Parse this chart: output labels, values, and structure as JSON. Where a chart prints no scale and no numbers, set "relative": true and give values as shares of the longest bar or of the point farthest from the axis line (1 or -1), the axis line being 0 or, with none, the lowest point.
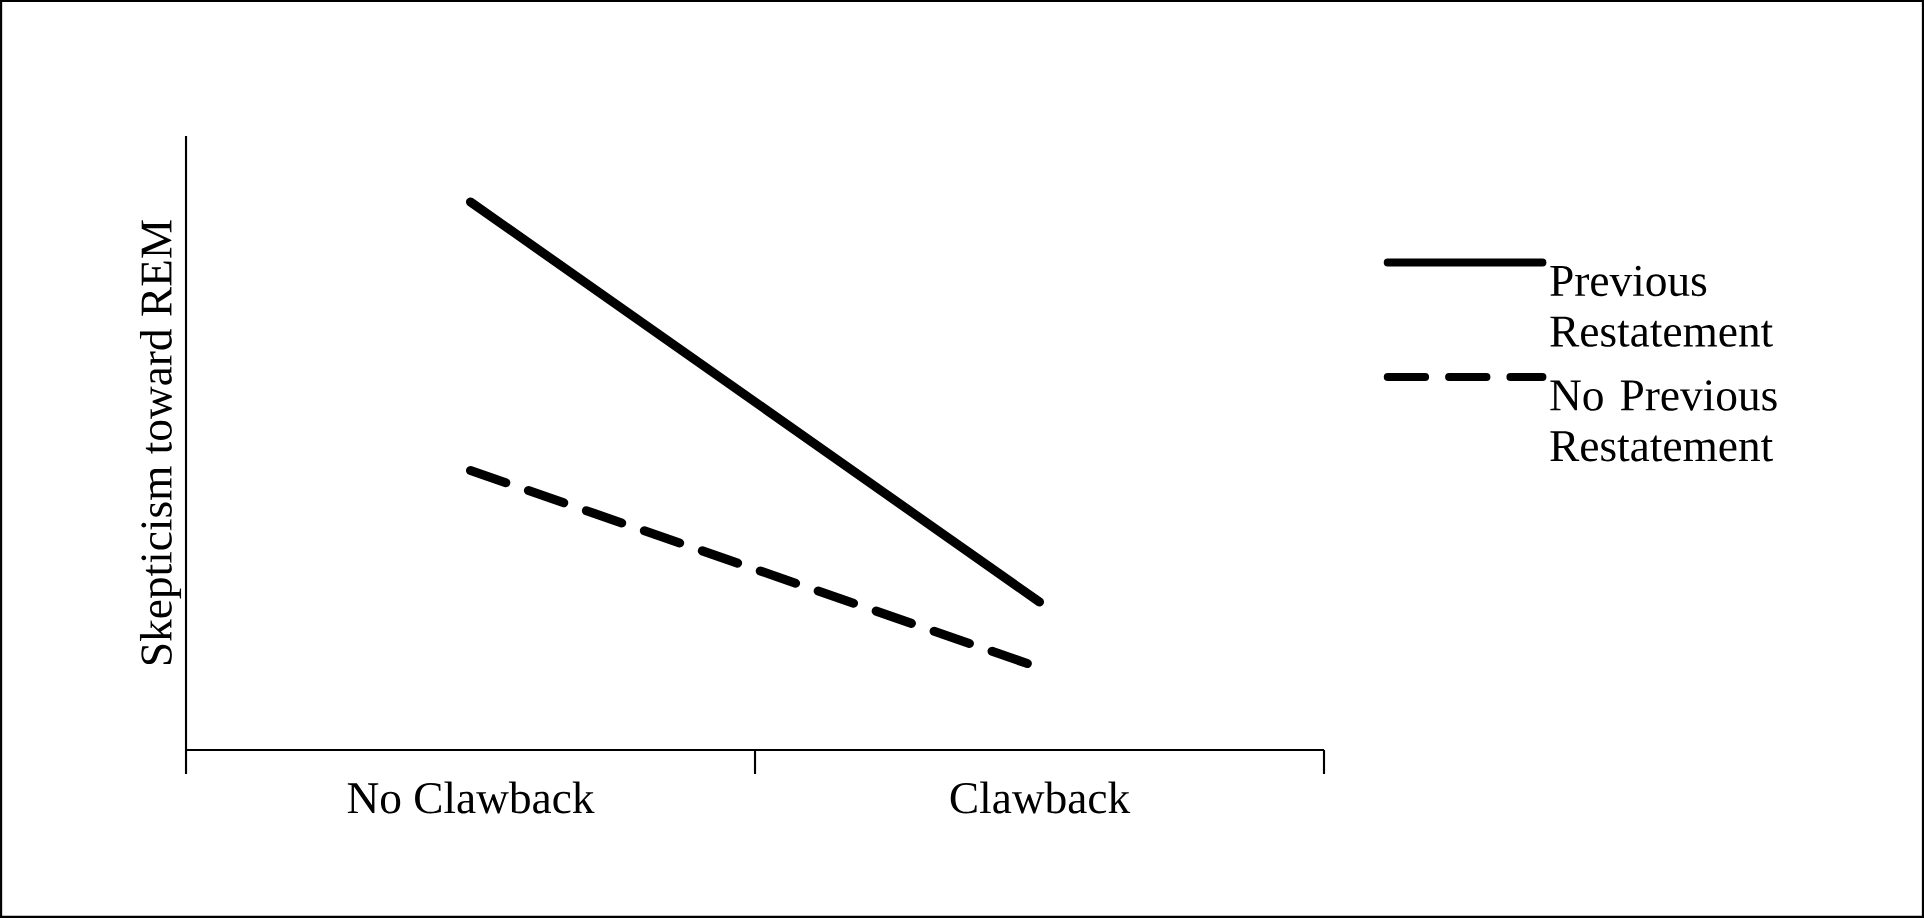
{
  "chart_data": {
    "type": "line",
    "relative": true,
    "ylabel": "Skepticism toward REM",
    "categories": [
      "No Clawback",
      "Clawback"
    ],
    "series": [
      {
        "name": "Previous Restatement",
        "color": "#000000",
        "line_style": "solid",
        "values": [
          1,
          0.27
        ]
      },
      {
        "name": "No Previous Restatement",
        "color": "#000000",
        "line_style": "dashed",
        "values": [
          0.51,
          0.15
        ]
      }
    ],
    "legend": "right",
    "grid": false
  }
}
